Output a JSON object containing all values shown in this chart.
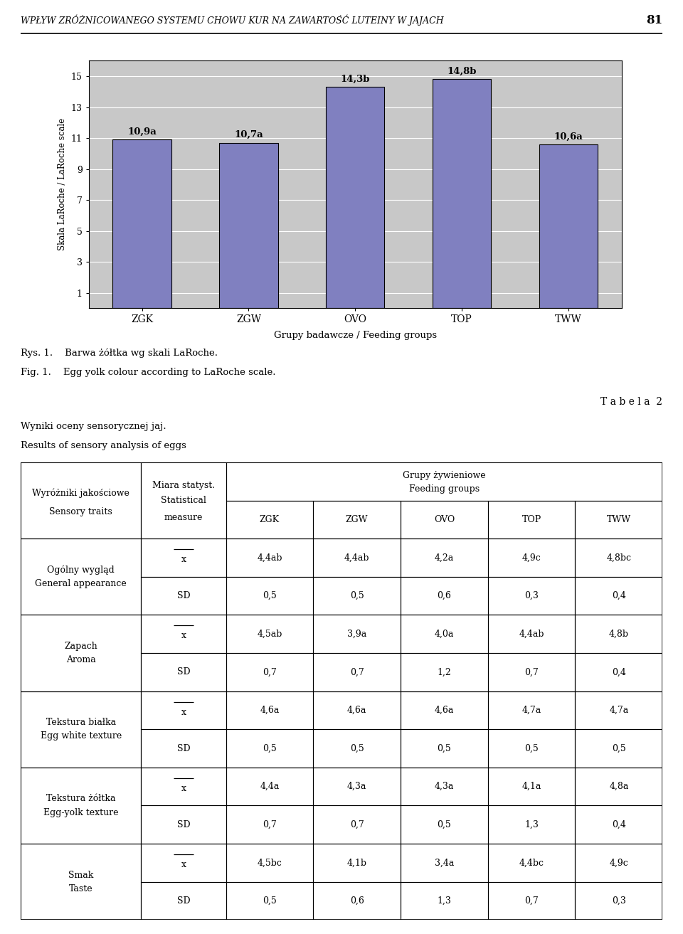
{
  "page_title": "WPŁYW ZRÓŻNICOWANEGO SYSTEMU CHOWU KUR NA ZAWARTOŚĆ LUTEINY W JAJACH",
  "page_number": "81",
  "bar_categories": [
    "ZGK",
    "ZGW",
    "OVO",
    "TOP",
    "TWW"
  ],
  "bar_values": [
    10.9,
    10.7,
    14.3,
    14.8,
    10.6
  ],
  "bar_labels": [
    "10,9a",
    "10,7a",
    "14,3b",
    "14,8b",
    "10,6a"
  ],
  "bar_color": "#8080c0",
  "bar_edge_color": "#000000",
  "chart_bg_color": "#c8c8c8",
  "chart_ylabel": "Skala LaRoche / LaRoche scale",
  "chart_xlabel": "Grupy badawcze / Feeding groups",
  "chart_yticks": [
    1,
    3,
    5,
    7,
    9,
    11,
    13,
    15
  ],
  "chart_ylim": [
    0,
    16
  ],
  "fig_caption_pl": "Rys. 1.    Barwa żółtka wg skali LaRoche.",
  "fig_caption_en": "Fig. 1.    Egg yolk colour according to LaRoche scale.",
  "tabela_label": "T a b e l a  2",
  "table_title_pl": "Wyniki oceny sensorycznej jaj.",
  "table_title_en": "Results of sensory analysis of eggs",
  "col_header_left1": "Wyróżniki jakościowe",
  "col_header_left2": "Sensory traits",
  "col_header_mid1": "Miara statyst.",
  "col_header_mid2": "Statistical",
  "col_header_mid3": "measure",
  "col_header_right1": "Grupy żywieniowe",
  "col_header_right2": "Feeding groups",
  "col_subheaders": [
    "ZGK",
    "ZGW",
    "OVO",
    "TOP",
    "TWW"
  ],
  "rows": [
    {
      "trait_pl": "Ogólny wygląd",
      "trait_en": "General appearance",
      "mean_row": [
        "4,4ab",
        "4,4ab",
        "4,2a",
        "4,9c",
        "4,8bc"
      ],
      "sd_row": [
        "0,5",
        "0,5",
        "0,6",
        "0,3",
        "0,4"
      ]
    },
    {
      "trait_pl": "Zapach",
      "trait_en": "Aroma",
      "mean_row": [
        "4,5ab",
        "3,9a",
        "4,0a",
        "4,4ab",
        "4,8b"
      ],
      "sd_row": [
        "0,7",
        "0,7",
        "1,2",
        "0,7",
        "0,4"
      ]
    },
    {
      "trait_pl": "Tekstura białka",
      "trait_en": "Egg white texture",
      "mean_row": [
        "4,6a",
        "4,6a",
        "4,6a",
        "4,7a",
        "4,7a"
      ],
      "sd_row": [
        "0,5",
        "0,5",
        "0,5",
        "0,5",
        "0,5"
      ]
    },
    {
      "trait_pl": "Tekstura żółtka",
      "trait_en": "Egg-yolk texture",
      "mean_row": [
        "4,4a",
        "4,3a",
        "4,3a",
        "4,1a",
        "4,8a"
      ],
      "sd_row": [
        "0,7",
        "0,7",
        "0,5",
        "1,3",
        "0,4"
      ]
    },
    {
      "trait_pl": "Smak",
      "trait_en": "Taste",
      "mean_row": [
        "4,5bc",
        "4,1b",
        "3,4a",
        "4,4bc",
        "4,9c"
      ],
      "sd_row": [
        "0,5",
        "0,6",
        "1,3",
        "0,7",
        "0,3"
      ]
    }
  ]
}
